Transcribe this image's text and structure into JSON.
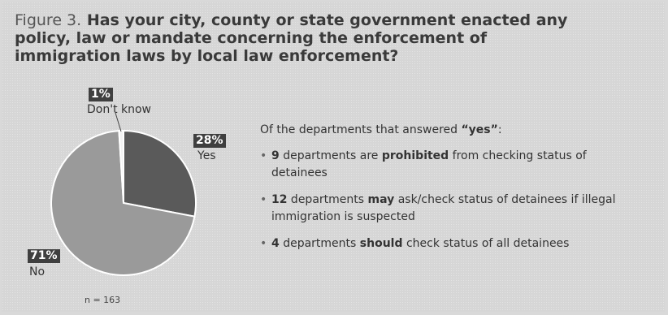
{
  "header": {
    "figure_label": "Figure 3.",
    "title": "Has your city, county or state government enacted any policy, law or mandate concerning the enforcement of immigration laws by local law enforcement?"
  },
  "chart_data": {
    "type": "pie",
    "title": "Has your city, county or state government enacted any policy, law or mandate concerning the enforcement of immigration laws by local law enforcement?",
    "slices": [
      {
        "label": "Yes",
        "value": 28,
        "display": "28%",
        "color": "#5a5a5a"
      },
      {
        "label": "No",
        "value": 71,
        "display": "71%",
        "color": "#9a9a9a"
      },
      {
        "label": "Don't know",
        "value": 1,
        "display": "1%",
        "color": "#f2f2f2"
      }
    ],
    "note": "n = 163"
  },
  "notes": {
    "lead_text": "Of the departments that answered ",
    "lead_quote": "“yes”",
    "lead_end": ":",
    "bullets": [
      {
        "num": "9",
        "pre": " departments are ",
        "bold": "prohibited",
        "post": " from checking status of detainees"
      },
      {
        "num": "12",
        "pre": " departments ",
        "bold": "may",
        "post": " ask/check status of detainees if illegal immigration is suspected"
      },
      {
        "num": "4",
        "pre": " departments ",
        "bold": "should",
        "post": " check status of all detainees"
      }
    ],
    "bullet_glyph": "•"
  }
}
